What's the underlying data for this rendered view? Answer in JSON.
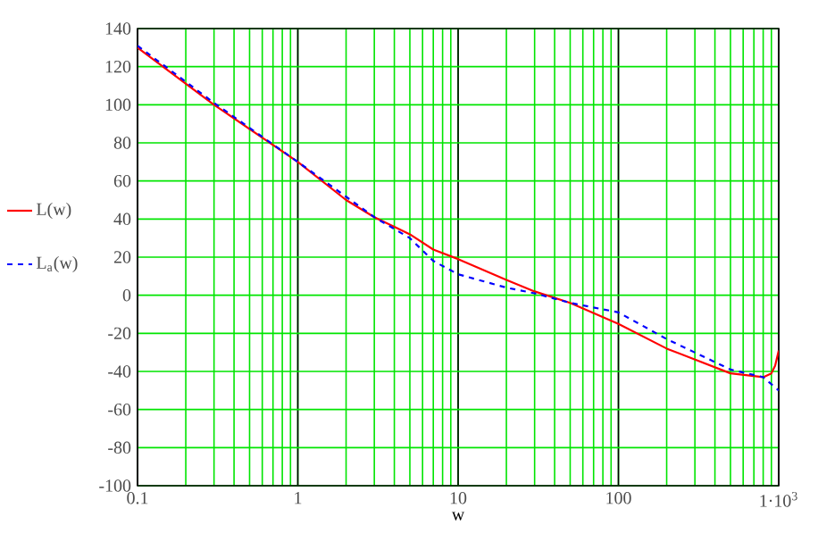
{
  "chart_data": {
    "type": "line",
    "xlabel": "w",
    "log": "x",
    "grid": true,
    "legend": "left",
    "xlim": [
      0.1,
      1000
    ],
    "ylim": [
      -100,
      140
    ],
    "xticks": [
      0.1,
      1,
      10,
      100,
      {
        "value": 1000,
        "label": "1·10$^{3}$"
      }
    ],
    "yticks": [
      -100,
      -80,
      -60,
      -40,
      -20,
      0,
      20,
      40,
      60,
      80,
      100,
      120,
      140
    ],
    "series": [
      {
        "name": "L(w)",
        "color": "#ff0000",
        "line_style": "solid",
        "x": [
          0.1,
          0.3,
          1,
          2,
          3,
          5,
          7,
          10,
          20,
          30,
          50,
          100,
          200,
          500,
          800,
          900,
          950,
          1000
        ],
        "values": [
          130,
          100,
          70,
          50,
          41,
          32,
          24,
          19,
          8,
          2,
          -4,
          -15,
          -28,
          -41,
          -43,
          -41,
          -37,
          -29
        ]
      },
      {
        "name": "L$_{a}$(w)",
        "color": "#0000ff",
        "line_style": "dashed",
        "x": [
          0.1,
          0.3,
          1,
          3,
          5,
          7,
          10,
          20,
          30,
          50,
          100,
          200,
          500,
          800,
          1000
        ],
        "values": [
          131,
          101,
          70,
          41,
          30,
          18,
          11,
          4,
          1,
          -4,
          -9,
          -23,
          -39,
          -43,
          -50
        ]
      }
    ]
  }
}
